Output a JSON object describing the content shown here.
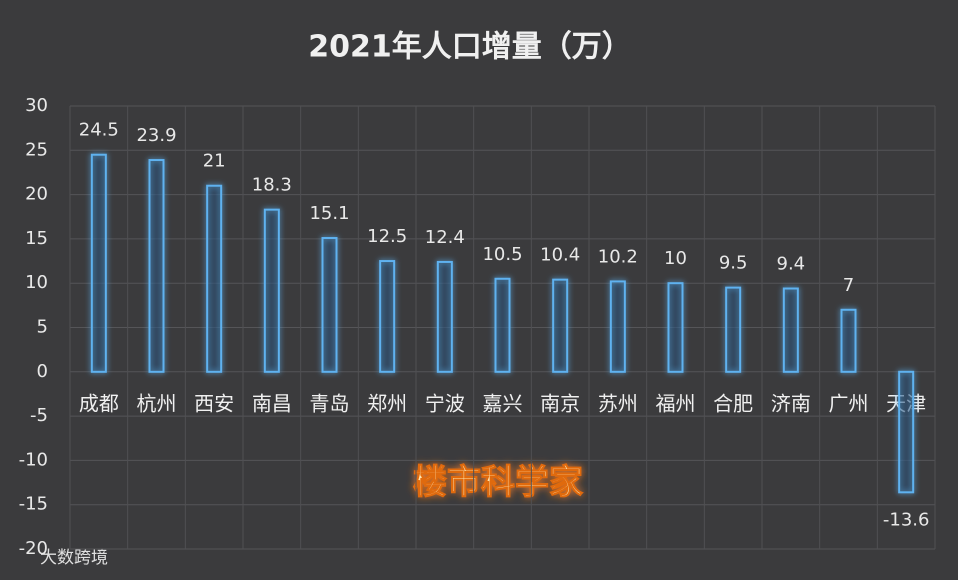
{
  "chart_data": {
    "type": "bar",
    "title": "2021年人口增量（万）",
    "categories": [
      "成都",
      "杭州",
      "西安",
      "南昌",
      "青岛",
      "郑州",
      "宁波",
      "嘉兴",
      "南京",
      "苏州",
      "福州",
      "合肥",
      "济南",
      "广州",
      "天津"
    ],
    "values": [
      24.5,
      23.9,
      21,
      18.3,
      15.1,
      12.5,
      12.4,
      10.5,
      10.4,
      10.2,
      10,
      9.5,
      9.4,
      7,
      -13.6
    ],
    "color": "#5fb2f0",
    "ylim": [
      -20,
      30
    ],
    "yticks": [
      -20,
      -15,
      -10,
      -5,
      0,
      5,
      10,
      15,
      20,
      25,
      30
    ],
    "grid": true,
    "watermark": "楼市科学家",
    "source": "大数跨境"
  }
}
